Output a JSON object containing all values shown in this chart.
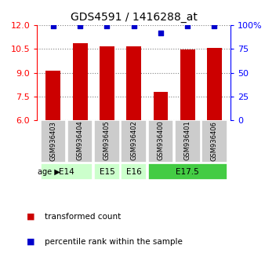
{
  "title": "GDS4591 / 1416288_at",
  "samples": [
    "GSM936403",
    "GSM936404",
    "GSM936405",
    "GSM936402",
    "GSM936400",
    "GSM936401",
    "GSM936406"
  ],
  "bar_values": [
    9.15,
    10.85,
    10.65,
    10.65,
    7.8,
    10.45,
    10.58
  ],
  "percentile_values": [
    99,
    99,
    99,
    99,
    92,
    99,
    99
  ],
  "ylim_left": [
    6,
    12
  ],
  "ylim_right": [
    0,
    100
  ],
  "yticks_left": [
    6,
    7.5,
    9,
    10.5,
    12
  ],
  "yticks_right": [
    0,
    25,
    50,
    75,
    100
  ],
  "bar_color": "#cc0000",
  "dot_color": "#0000cc",
  "age_groups": [
    {
      "label": "E14",
      "samples": [
        "GSM936403",
        "GSM936404"
      ],
      "color": "#ccffcc"
    },
    {
      "label": "E15",
      "samples": [
        "GSM936405"
      ],
      "color": "#ccffcc"
    },
    {
      "label": "E16",
      "samples": [
        "GSM936402"
      ],
      "color": "#ccffcc"
    },
    {
      "label": "E17.5",
      "samples": [
        "GSM936400",
        "GSM936401",
        "GSM936406"
      ],
      "color": "#44cc44"
    }
  ],
  "background_color": "#ffffff",
  "sample_box_color": "#cccccc",
  "title_fontsize": 10,
  "tick_fontsize": 8,
  "legend_fontsize": 7.5
}
